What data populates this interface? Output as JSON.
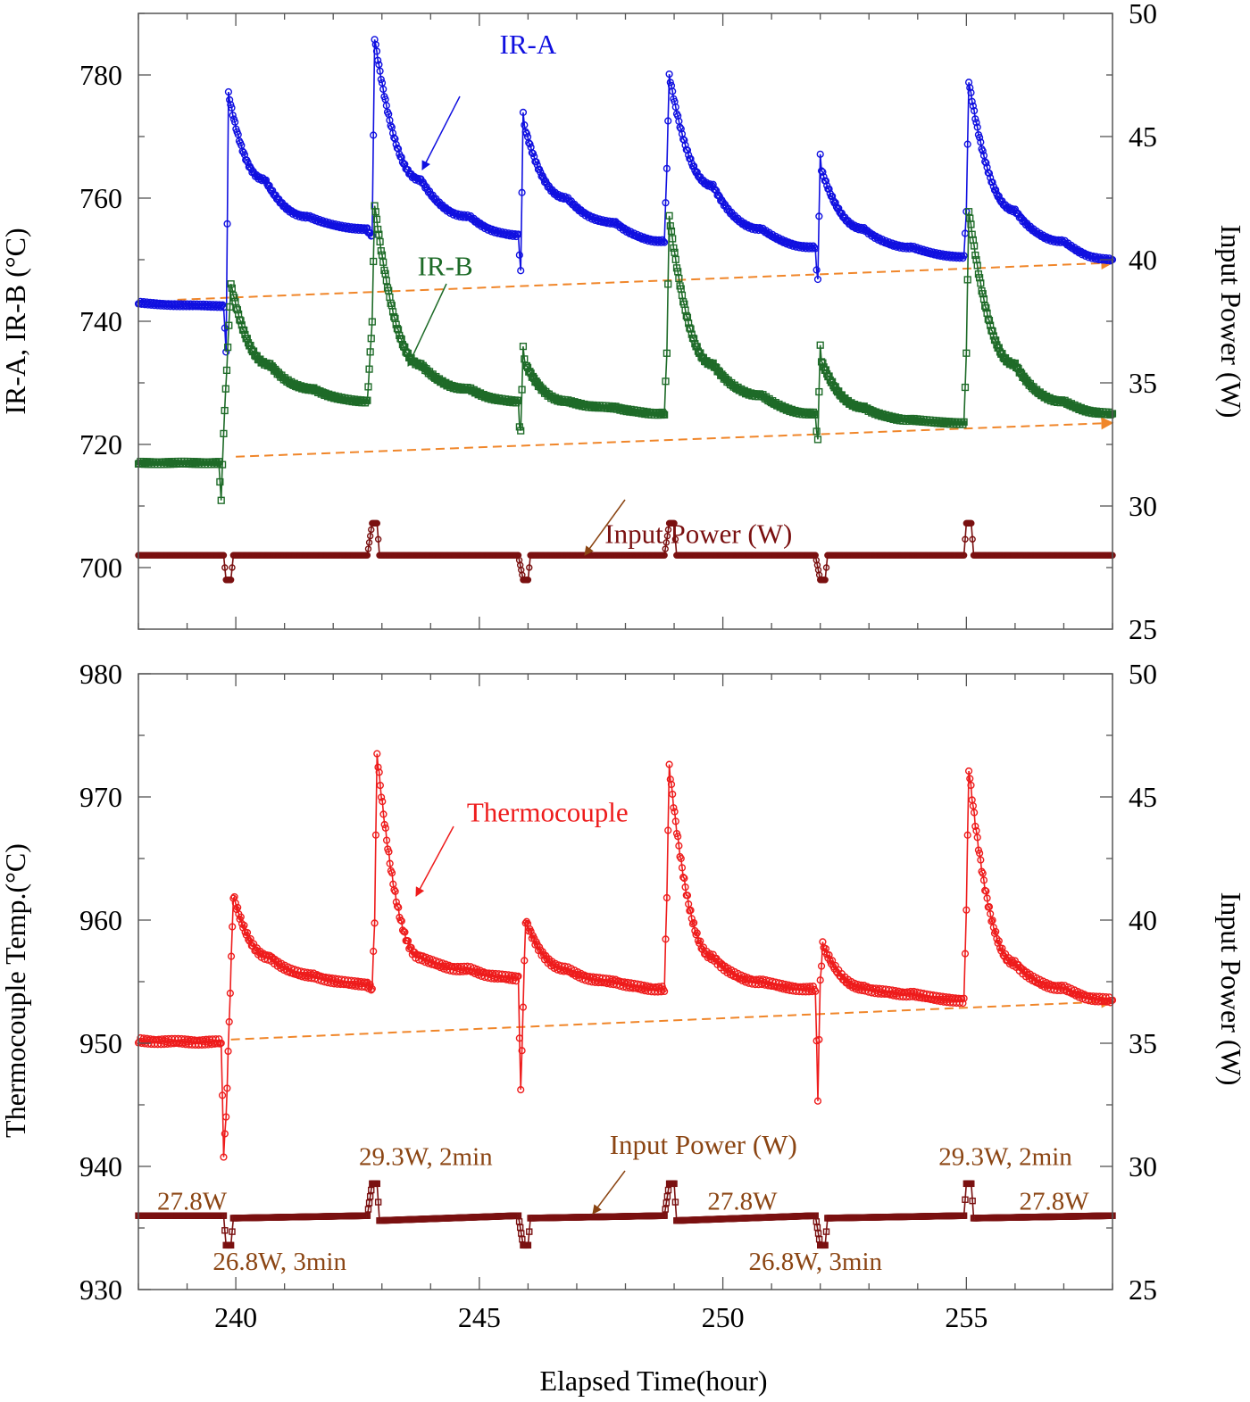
{
  "figure": {
    "xlabel": "Elapsed Time(hour)"
  },
  "chart_data": [
    {
      "type": "line",
      "panel": "top",
      "xlim": [
        238,
        258
      ],
      "xticks": [
        240,
        245,
        250,
        255
      ],
      "xticklabels": [
        "240",
        "245",
        "250",
        "255"
      ],
      "ylabel": "IR-A, IR-B (°C)",
      "ylim": [
        690,
        790
      ],
      "yticks": [
        700,
        720,
        740,
        760,
        780
      ],
      "yticklabels": [
        "700",
        "720",
        "740",
        "760",
        "780"
      ],
      "y2label": "Input Power (W)",
      "y2lim": [
        25,
        50
      ],
      "y2ticks": [
        25,
        30,
        35,
        40,
        45,
        50
      ],
      "y2ticklabels": [
        "25",
        "30",
        "35",
        "40",
        "45",
        "50"
      ],
      "events_x": [
        239.8,
        242.8,
        245.9,
        248.9,
        252.0,
        255.0
      ],
      "series": [
        {
          "name": "IR-A",
          "label": "IR-A",
          "color": "#1010e0",
          "axis": "left",
          "marker": "circle",
          "x": [
            238.0,
            239.75,
            239.8,
            239.85,
            240.6,
            241.5,
            242.7,
            242.8,
            242.85,
            243.8,
            244.8,
            245.8,
            245.85,
            245.9,
            245.95,
            246.8,
            247.8,
            248.8,
            248.85,
            248.9,
            249.8,
            250.8,
            251.9,
            251.95,
            252.0,
            252.05,
            252.9,
            253.9,
            254.95,
            255.0,
            255.05,
            256.0,
            257.0,
            258.0
          ],
          "values": [
            743.0,
            742.5,
            735.0,
            777.0,
            763.0,
            757.0,
            755.0,
            754.0,
            786.0,
            763.0,
            757.0,
            754.0,
            748.0,
            774.0,
            771.0,
            760.0,
            756.0,
            753.0,
            765.0,
            780.0,
            762.0,
            755.0,
            752.0,
            747.0,
            767.0,
            764.0,
            755.0,
            752.0,
            750.5,
            758.0,
            779.0,
            758.0,
            753.0,
            750.0
          ]
        },
        {
          "name": "IR-B",
          "label": "IR-B",
          "color": "#1e6b28",
          "axis": "left",
          "marker": "square",
          "x": [
            238.0,
            239.65,
            239.7,
            239.75,
            239.9,
            240.7,
            241.6,
            242.7,
            242.8,
            242.85,
            243.8,
            244.8,
            245.8,
            245.85,
            245.9,
            245.95,
            246.8,
            247.8,
            248.8,
            248.85,
            248.9,
            249.8,
            250.8,
            251.9,
            251.95,
            252.0,
            252.05,
            252.9,
            253.9,
            254.95,
            255.0,
            255.05,
            256.0,
            257.0,
            258.0
          ],
          "values": [
            717.0,
            717.0,
            711.0,
            722.0,
            746.0,
            733.0,
            729.0,
            727.0,
            740.0,
            759.0,
            733.0,
            729.0,
            727.0,
            722.0,
            736.0,
            733.0,
            727.0,
            726.0,
            725.0,
            735.0,
            757.0,
            733.0,
            728.0,
            725.0,
            721.0,
            736.0,
            733.0,
            726.0,
            724.0,
            723.5,
            735.0,
            758.0,
            733.0,
            727.0,
            725.0
          ]
        },
        {
          "name": "Input Power (W)",
          "label": "Input Power (W)",
          "color": "#7a1010",
          "axis": "right",
          "marker": "circle",
          "x": [
            238.0,
            239.75,
            239.8,
            239.9,
            239.95,
            242.7,
            242.8,
            242.9,
            242.95,
            245.8,
            245.9,
            246.0,
            246.05,
            248.8,
            248.9,
            249.0,
            249.05,
            251.9,
            252.0,
            252.1,
            252.15,
            254.95,
            255.0,
            255.1,
            255.15,
            258.0
          ],
          "values": [
            28.0,
            28.0,
            27.0,
            27.0,
            28.0,
            28.0,
            29.3,
            29.3,
            28.0,
            28.0,
            27.0,
            27.0,
            28.0,
            28.0,
            29.3,
            29.3,
            28.0,
            28.0,
            27.0,
            27.0,
            28.0,
            28.0,
            29.3,
            29.3,
            28.0,
            28.0
          ]
        }
      ],
      "trend_lines": [
        {
          "color": "#f0862a",
          "x": [
            238.8,
            258.0
          ],
          "values": [
            743.5,
            749.5
          ]
        },
        {
          "color": "#f0862a",
          "x": [
            240.0,
            258.0
          ],
          "values": [
            718.0,
            723.5
          ]
        }
      ],
      "annotations": [
        {
          "text": "IR-A",
          "color": "#1010e0",
          "x": 246.0,
          "y": 783.5
        },
        {
          "text": "IR-B",
          "color": "#1e6b28",
          "x": 244.3,
          "y": 747.5
        },
        {
          "text": "Input Power (W)",
          "color": "#7a1010",
          "x": 249.5,
          "y": 704.0
        }
      ]
    },
    {
      "type": "line",
      "panel": "bottom",
      "xlim": [
        238,
        258
      ],
      "xticks": [
        240,
        245,
        250,
        255
      ],
      "xticklabels": [
        "240",
        "245",
        "250",
        "255"
      ],
      "ylabel": "Thermocouple Temp.(°C)",
      "ylim": [
        930,
        980
      ],
      "yticks": [
        930,
        940,
        950,
        960,
        970,
        980
      ],
      "yticklabels": [
        "930",
        "940",
        "950",
        "960",
        "970",
        "980"
      ],
      "y2label": "Input Power (W)",
      "y2lim": [
        25,
        50
      ],
      "y2ticks": [
        25,
        30,
        35,
        40,
        45,
        50
      ],
      "y2ticklabels": [
        "25",
        "30",
        "35",
        "40",
        "45",
        "50"
      ],
      "series": [
        {
          "name": "Thermocouple",
          "label": "Thermocouple",
          "color": "#ee1c1c",
          "axis": "left",
          "marker": "circle",
          "x": [
            238.0,
            239.7,
            239.75,
            239.8,
            239.95,
            240.7,
            241.6,
            242.7,
            242.8,
            242.85,
            242.9,
            243.8,
            244.8,
            245.8,
            245.85,
            245.9,
            245.95,
            246.8,
            247.8,
            248.8,
            248.85,
            248.9,
            249.8,
            250.8,
            251.9,
            251.95,
            252.0,
            252.05,
            252.9,
            253.9,
            254.95,
            255.0,
            255.05,
            256.0,
            257.0,
            258.0
          ],
          "values": [
            950.2,
            950.1,
            941.0,
            944.0,
            962.0,
            957.0,
            955.5,
            954.8,
            954.5,
            960.0,
            973.5,
            957.0,
            956.0,
            955.3,
            946.0,
            953.0,
            960.0,
            956.0,
            955.0,
            954.4,
            962.0,
            972.5,
            957.0,
            955.0,
            954.4,
            945.5,
            955.0,
            958.0,
            954.5,
            954.0,
            953.5,
            961.0,
            972.3,
            956.5,
            954.5,
            953.5
          ]
        },
        {
          "name": "Input Power (W)",
          "label": "Input Power (W)",
          "color": "#7a1010",
          "axis": "right",
          "marker": "square",
          "x": [
            238.0,
            239.75,
            239.8,
            239.9,
            239.95,
            242.7,
            242.8,
            242.9,
            242.95,
            245.8,
            245.9,
            246.0,
            246.05,
            248.8,
            248.9,
            249.0,
            249.05,
            251.9,
            252.0,
            252.1,
            252.15,
            254.95,
            255.0,
            255.1,
            255.15,
            258.0
          ],
          "values": [
            28.0,
            28.0,
            26.8,
            26.8,
            27.9,
            28.0,
            29.3,
            29.3,
            27.8,
            28.0,
            26.8,
            26.8,
            27.9,
            28.0,
            29.3,
            29.3,
            27.8,
            28.0,
            26.8,
            26.8,
            27.9,
            28.0,
            29.3,
            29.3,
            27.9,
            28.0
          ]
        }
      ],
      "trend_lines": [
        {
          "color": "#f0862a",
          "x": [
            239.9,
            258.0
          ],
          "values": [
            950.3,
            953.4
          ]
        }
      ],
      "annotations": [
        {
          "text": "Thermocouple",
          "color": "#ee1c1c",
          "x": 246.4,
          "y": 968.0
        },
        {
          "text": "Input Power (W)",
          "color": "#8b4513",
          "x": 249.6,
          "y": 941.0
        },
        {
          "text": "29.3W, 2min",
          "color": "#8b4513",
          "x": 243.9,
          "y": 940.1
        },
        {
          "text": "29.3W, 2min",
          "color": "#8b4513",
          "x": 255.8,
          "y": 940.1
        },
        {
          "text": "27.8W",
          "color": "#8b4513",
          "x": 239.1,
          "y": 936.5
        },
        {
          "text": "27.8W",
          "color": "#8b4513",
          "x": 250.4,
          "y": 936.5
        },
        {
          "text": "27.8W",
          "color": "#8b4513",
          "x": 256.8,
          "y": 936.5
        },
        {
          "text": "26.8W, 3min",
          "color": "#8b4513",
          "x": 240.9,
          "y": 931.6
        },
        {
          "text": "26.8W, 3min",
          "color": "#8b4513",
          "x": 251.9,
          "y": 931.6
        }
      ]
    }
  ]
}
